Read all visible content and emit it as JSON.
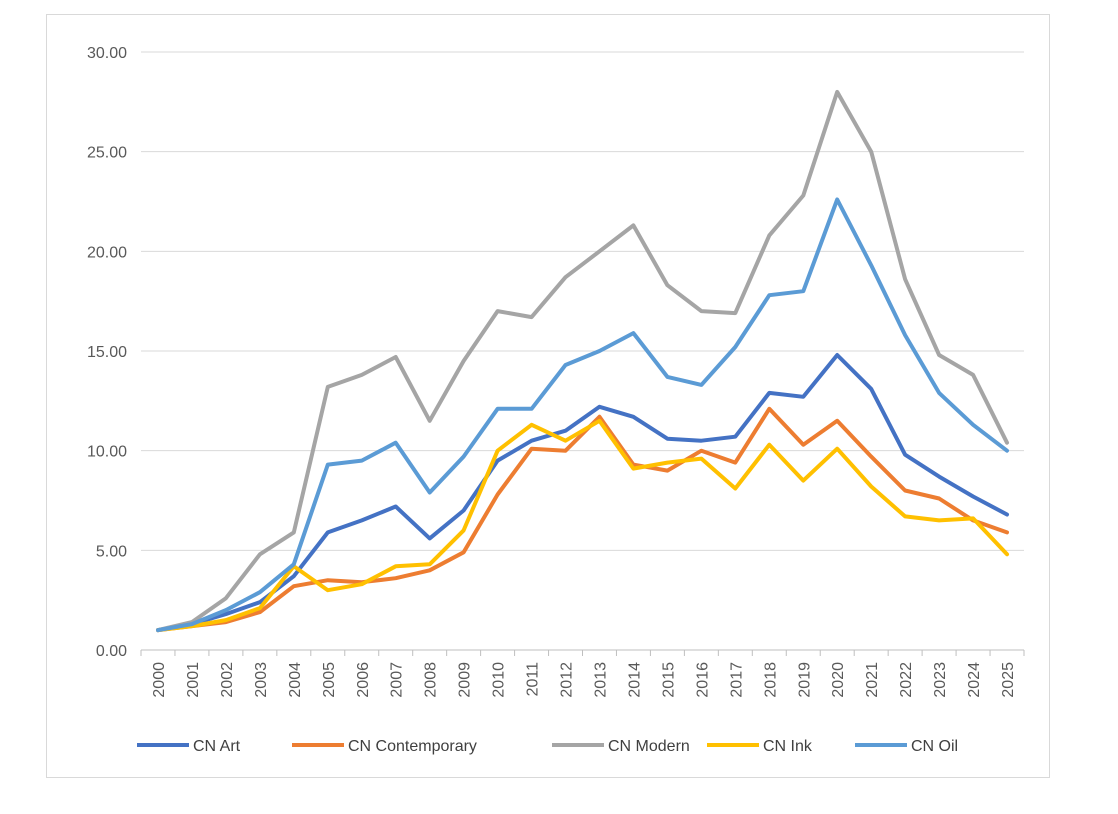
{
  "chart_data": {
    "type": "line",
    "title": "",
    "xlabel": "",
    "ylabel": "",
    "ylim": [
      0,
      30
    ],
    "yticks": [
      "0.00",
      "5.00",
      "10.00",
      "15.00",
      "20.00",
      "25.00",
      "30.00"
    ],
    "grid": true,
    "legend_position": "bottom",
    "categories": [
      "2000",
      "2001",
      "2002",
      "2003",
      "2004",
      "2005",
      "2006",
      "2007",
      "2008",
      "2009",
      "2010",
      "2011",
      "2012",
      "2013",
      "2014",
      "2015",
      "2016",
      "2017",
      "2018",
      "2019",
      "2020",
      "2021",
      "2022",
      "2023",
      "2024",
      "2025"
    ],
    "series": [
      {
        "name": "CN Art",
        "color": "#4472c4",
        "values": [
          1.0,
          1.3,
          1.8,
          2.4,
          3.7,
          5.9,
          6.5,
          7.2,
          5.6,
          7.0,
          9.5,
          10.5,
          11.0,
          12.2,
          11.7,
          10.6,
          10.5,
          10.7,
          12.9,
          12.7,
          14.8,
          13.1,
          9.8,
          8.7,
          7.7,
          6.8
        ]
      },
      {
        "name": "CN Contemporary",
        "color": "#ed7d31",
        "values": [
          1.0,
          1.2,
          1.4,
          1.9,
          3.2,
          3.5,
          3.4,
          3.6,
          4.0,
          4.9,
          7.8,
          10.1,
          10.0,
          11.7,
          9.3,
          9.0,
          10.0,
          9.4,
          12.1,
          10.3,
          11.5,
          9.7,
          8.0,
          7.6,
          6.5,
          5.9
        ]
      },
      {
        "name": "CN Modern",
        "color": "#a5a5a5",
        "values": [
          1.0,
          1.4,
          2.6,
          4.8,
          5.9,
          13.2,
          13.8,
          14.7,
          11.5,
          14.5,
          17.0,
          16.7,
          18.7,
          20.0,
          21.3,
          18.3,
          17.0,
          16.9,
          20.8,
          22.8,
          28.0,
          25.0,
          18.6,
          14.8,
          13.8,
          10.4
        ]
      },
      {
        "name": "CN Ink",
        "color": "#ffc000",
        "values": [
          1.0,
          1.2,
          1.5,
          2.1,
          4.2,
          3.0,
          3.3,
          4.2,
          4.3,
          6.0,
          10.0,
          11.3,
          10.5,
          11.5,
          9.1,
          9.4,
          9.6,
          8.1,
          10.3,
          8.5,
          10.1,
          8.2,
          6.7,
          6.5,
          6.6,
          4.8
        ]
      },
      {
        "name": "CN Oil",
        "color": "#5b9bd5",
        "values": [
          1.0,
          1.3,
          2.0,
          2.9,
          4.3,
          9.3,
          9.5,
          10.4,
          7.9,
          9.7,
          12.1,
          12.1,
          14.3,
          15.0,
          15.9,
          13.7,
          13.3,
          15.2,
          17.8,
          18.0,
          22.6,
          19.3,
          15.8,
          12.9,
          11.3,
          10.0
        ]
      }
    ]
  }
}
